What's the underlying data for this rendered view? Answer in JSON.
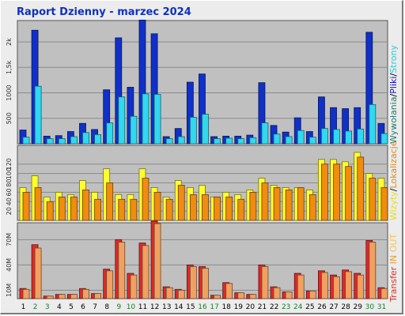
{
  "chart_data": {
    "title": "Raport Dzienny -  marzec 2024",
    "type": "bar",
    "days": [
      "1",
      "2",
      "3",
      "4",
      "5",
      "6",
      "7",
      "8",
      "9",
      "10",
      "11",
      "12",
      "13",
      "14",
      "15",
      "16",
      "17",
      "18",
      "19",
      "20",
      "21",
      "22",
      "23",
      "24",
      "25",
      "26",
      "27",
      "28",
      "29",
      "30",
      "31"
    ],
    "weekend_days": [
      "2",
      "3",
      "9",
      "10",
      "16",
      "17",
      "23",
      "24",
      "30",
      "31"
    ],
    "panels": [
      {
        "name": "top",
        "y_ticks": [
          "500",
          "1000",
          "1,5k",
          "2k"
        ],
        "ylim": [
          0,
          2420
        ],
        "side_label": [
          {
            "text": "Wywołania",
            "color": "#1f7a6a"
          },
          {
            "text": "/",
            "color": "#000000"
          },
          {
            "text": "Pliki",
            "color": "#1010cc"
          },
          {
            "text": "/",
            "color": "#000000"
          },
          {
            "text": "Strony",
            "color": "#22ccdd"
          }
        ],
        "series": [
          {
            "name": "Wywołania",
            "color": "#1030c8",
            "values": [
              270,
              2230,
              150,
              160,
              240,
              400,
              280,
              1060,
              2080,
              1110,
              2430,
              2160,
              140,
              300,
              1210,
              1370,
              140,
              150,
              150,
              170,
              1200,
              360,
              230,
              510,
              240,
              920,
              710,
              690,
              710,
              2190,
              400
            ]
          },
          {
            "name": "Strony",
            "color": "#30d8f0",
            "values": [
              130,
              1130,
              100,
              100,
              140,
              220,
              180,
              410,
              920,
              540,
              980,
              970,
              100,
              140,
              520,
              580,
              100,
              110,
              100,
              120,
              410,
              190,
              140,
              260,
              130,
              300,
              280,
              250,
              290,
              770,
              200
            ]
          }
        ]
      },
      {
        "name": "middle",
        "y_ticks": [
          "20",
          "40",
          "60",
          "80",
          "100",
          "120",
          "160"
        ],
        "ylim": [
          0,
          160
        ],
        "side_label": [
          {
            "text": "Wizyty",
            "color": "#e0e020"
          },
          {
            "text": "/",
            "color": "#000000"
          },
          {
            "text": "Lokalizacje",
            "color": "#e08a10"
          }
        ],
        "series": [
          {
            "name": "Wizyty",
            "color": "#ffff30",
            "values": [
              70,
              95,
              50,
              60,
              55,
              85,
              60,
              110,
              55,
              55,
              110,
              70,
              50,
              85,
              70,
              75,
              50,
              60,
              55,
              65,
              90,
              75,
              70,
              70,
              65,
              130,
              130,
              125,
              145,
              100,
              90
            ]
          },
          {
            "name": "Lokalizacje",
            "color": "#f08c10",
            "values": [
              60,
              70,
              40,
              50,
              50,
              65,
              45,
              80,
              45,
              45,
              90,
              60,
              45,
              75,
              55,
              55,
              50,
              50,
              45,
              60,
              80,
              70,
              65,
              70,
              55,
              120,
              120,
              115,
              135,
              90,
              70
            ]
          }
        ]
      },
      {
        "name": "bottom",
        "y_ticks": [
          "10M",
          "40M",
          "70M"
        ],
        "ylim": [
          0,
          90
        ],
        "side_label": [
          {
            "text": "Transfer",
            "color": "#e03020"
          },
          {
            "text": "IN",
            "color": "#e0a040"
          },
          {
            "text": "OUT",
            "color": "#f0c060"
          }
        ],
        "series": [
          {
            "name": "Transfer",
            "color": "#e02828",
            "values": [
              12,
              64,
              3,
              5,
              5,
              12,
              6,
              35,
              70,
              30,
              66,
              92,
              14,
              11,
              40,
              38,
              4,
              19,
              7,
              5,
              40,
              14,
              8,
              30,
              9,
              33,
              28,
              34,
              30,
              69,
              13
            ]
          },
          {
            "name": "OUT",
            "color": "#f0a060",
            "values": [
              11,
              60,
              3,
              5,
              5,
              11,
              6,
              33,
              67,
              28,
              63,
              89,
              13,
              10,
              38,
              36,
              4,
              18,
              7,
              5,
              38,
              13,
              8,
              28,
              9,
              31,
              26,
              32,
              28,
              67,
              12
            ]
          }
        ]
      }
    ]
  }
}
